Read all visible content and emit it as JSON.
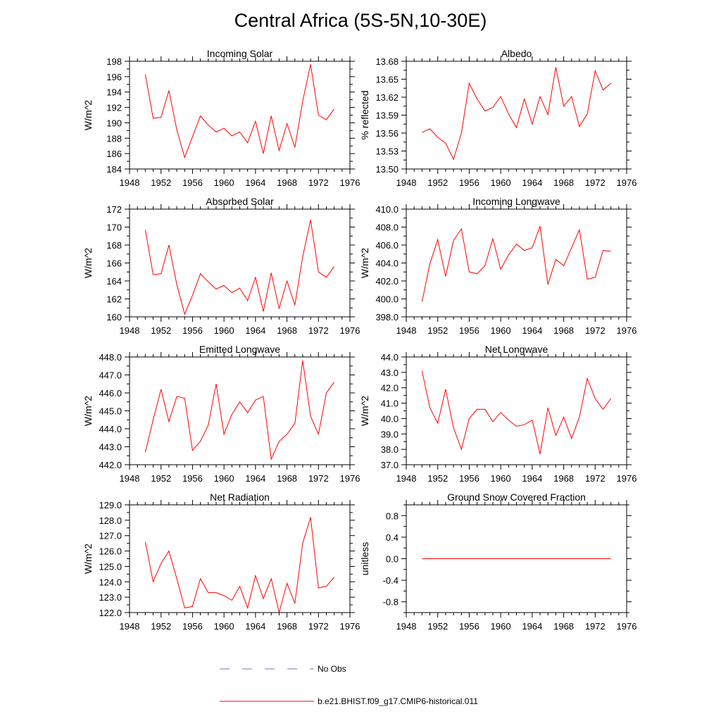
{
  "title": "Central Africa (5S-5N,10-30E)",
  "colors": {
    "model": "#ff0000",
    "obs": "#7a7ab0",
    "axis": "#000000"
  },
  "legend": {
    "entries": [
      {
        "label": "No Obs",
        "style": "dashed",
        "color": "#7a7ab0"
      },
      {
        "label": "b.e21.BHIST.f09_g17.CMIP6-historical.011",
        "style": "solid",
        "color": "#ff0000"
      }
    ]
  },
  "chart_data": [
    {
      "type": "line",
      "title": "Incoming Solar",
      "ylabel": "W/m^2",
      "xlim": [
        1948,
        1976
      ],
      "ylim": [
        184,
        198
      ],
      "xticks": [
        1948,
        1952,
        1956,
        1960,
        1964,
        1968,
        1972,
        1976
      ],
      "yticks": [
        184,
        186,
        188,
        190,
        192,
        194,
        196,
        198
      ],
      "ytick_labels": [
        "184",
        "186",
        "188",
        "190",
        "192",
        "194",
        "196",
        "198"
      ],
      "x": [
        1950,
        1951,
        1952,
        1953,
        1954,
        1955,
        1956,
        1957,
        1958,
        1959,
        1960,
        1961,
        1962,
        1963,
        1964,
        1965,
        1966,
        1967,
        1968,
        1969,
        1970,
        1971,
        1972,
        1973,
        1974
      ],
      "series": [
        {
          "values": [
            196.3,
            190.6,
            190.7,
            194.2,
            189.1,
            185.5,
            188.2,
            190.9,
            189.7,
            188.8,
            189.3,
            188.3,
            188.8,
            187.4,
            190.2,
            186.0,
            190.9,
            186.4,
            189.9,
            186.8,
            192.8,
            197.6,
            191.0,
            190.4,
            191.8
          ]
        }
      ]
    },
    {
      "type": "line",
      "title": "Albedo",
      "ylabel": "% reflected",
      "xlim": [
        1948,
        1976
      ],
      "ylim": [
        13.5,
        13.68
      ],
      "xticks": [
        1948,
        1952,
        1956,
        1960,
        1964,
        1968,
        1972,
        1976
      ],
      "yticks": [
        13.5,
        13.53,
        13.56,
        13.59,
        13.62,
        13.65,
        13.68
      ],
      "ytick_labels": [
        "13.50",
        "13.53",
        "13.56",
        "13.59",
        "13.62",
        "13.65",
        "13.68"
      ],
      "x": [
        1950,
        1951,
        1952,
        1953,
        1954,
        1955,
        1956,
        1957,
        1958,
        1959,
        1960,
        1961,
        1962,
        1963,
        1964,
        1965,
        1966,
        1967,
        1968,
        1969,
        1970,
        1971,
        1972,
        1973,
        1974
      ],
      "series": [
        {
          "values": [
            13.561,
            13.567,
            13.553,
            13.543,
            13.516,
            13.56,
            13.643,
            13.617,
            13.597,
            13.603,
            13.621,
            13.592,
            13.569,
            13.617,
            13.575,
            13.621,
            13.591,
            13.67,
            13.605,
            13.621,
            13.571,
            13.592,
            13.664,
            13.632,
            13.643
          ]
        }
      ]
    },
    {
      "type": "line",
      "title": "Absorbed Solar",
      "ylabel": "W/m^2",
      "xlim": [
        1948,
        1976
      ],
      "ylim": [
        160,
        172
      ],
      "xticks": [
        1948,
        1952,
        1956,
        1960,
        1964,
        1968,
        1972,
        1976
      ],
      "yticks": [
        160,
        162,
        164,
        166,
        168,
        170,
        172
      ],
      "ytick_labels": [
        "160",
        "162",
        "164",
        "166",
        "168",
        "170",
        "172"
      ],
      "x": [
        1950,
        1951,
        1952,
        1953,
        1954,
        1955,
        1956,
        1957,
        1958,
        1959,
        1960,
        1961,
        1962,
        1963,
        1964,
        1965,
        1966,
        1967,
        1968,
        1969,
        1970,
        1971,
        1972,
        1973,
        1974
      ],
      "series": [
        {
          "values": [
            169.7,
            164.7,
            164.8,
            168.0,
            163.6,
            160.3,
            162.4,
            164.8,
            163.9,
            163.1,
            163.5,
            162.7,
            163.2,
            161.8,
            164.4,
            160.6,
            164.9,
            160.9,
            164.0,
            161.3,
            166.7,
            170.8,
            165.0,
            164.4,
            165.6
          ]
        }
      ]
    },
    {
      "type": "line",
      "title": "Incoming Longwave",
      "ylabel": "W/m^2",
      "xlim": [
        1948,
        1976
      ],
      "ylim": [
        398,
        410
      ],
      "xticks": [
        1948,
        1952,
        1956,
        1960,
        1964,
        1968,
        1972,
        1976
      ],
      "yticks": [
        398,
        400,
        402,
        404,
        406,
        408,
        410
      ],
      "ytick_labels": [
        "398.0",
        "400.0",
        "402.0",
        "404.0",
        "406.0",
        "408.0",
        "410.0"
      ],
      "x": [
        1950,
        1951,
        1952,
        1953,
        1954,
        1955,
        1956,
        1957,
        1958,
        1959,
        1960,
        1961,
        1962,
        1963,
        1964,
        1965,
        1966,
        1967,
        1968,
        1969,
        1970,
        1971,
        1972,
        1973,
        1974
      ],
      "series": [
        {
          "values": [
            399.7,
            403.9,
            406.6,
            402.5,
            406.5,
            407.8,
            403.0,
            402.8,
            403.7,
            406.7,
            403.3,
            404.9,
            406.1,
            405.4,
            405.7,
            408.1,
            401.6,
            404.4,
            403.7,
            405.7,
            407.7,
            402.2,
            402.4,
            405.4,
            405.3
          ]
        }
      ]
    },
    {
      "type": "line",
      "title": "Emitted Longwave",
      "ylabel": "W/m^2",
      "xlim": [
        1948,
        1976
      ],
      "ylim": [
        442,
        448
      ],
      "xticks": [
        1948,
        1952,
        1956,
        1960,
        1964,
        1968,
        1972,
        1976
      ],
      "yticks": [
        442,
        443,
        444,
        445,
        446,
        447,
        448
      ],
      "ytick_labels": [
        "442.0",
        "443.0",
        "444.0",
        "445.0",
        "446.0",
        "447.0",
        "448.0"
      ],
      "x": [
        1950,
        1951,
        1952,
        1953,
        1954,
        1955,
        1956,
        1957,
        1958,
        1959,
        1960,
        1961,
        1962,
        1963,
        1964,
        1965,
        1966,
        1967,
        1968,
        1969,
        1970,
        1971,
        1972,
        1973,
        1974
      ],
      "series": [
        {
          "values": [
            442.7,
            444.5,
            446.2,
            444.4,
            445.8,
            445.7,
            442.8,
            443.3,
            444.2,
            446.5,
            443.7,
            444.8,
            445.5,
            444.9,
            445.6,
            445.8,
            442.3,
            443.3,
            443.7,
            444.3,
            447.8,
            444.7,
            443.7,
            446.0,
            446.6
          ]
        }
      ]
    },
    {
      "type": "line",
      "title": "Net Longwave",
      "ylabel": "W/m^2",
      "xlim": [
        1948,
        1976
      ],
      "ylim": [
        37,
        44
      ],
      "xticks": [
        1948,
        1952,
        1956,
        1960,
        1964,
        1968,
        1972,
        1976
      ],
      "yticks": [
        37,
        38,
        39,
        40,
        41,
        42,
        43,
        44
      ],
      "ytick_labels": [
        "37.0",
        "38.0",
        "39.0",
        "40.0",
        "41.0",
        "42.0",
        "43.0",
        "44.0"
      ],
      "x": [
        1950,
        1951,
        1952,
        1953,
        1954,
        1955,
        1956,
        1957,
        1958,
        1959,
        1960,
        1961,
        1962,
        1963,
        1964,
        1965,
        1966,
        1967,
        1968,
        1969,
        1970,
        1971,
        1972,
        1973,
        1974
      ],
      "series": [
        {
          "values": [
            43.1,
            40.7,
            39.7,
            41.9,
            39.4,
            38.0,
            40.0,
            40.6,
            40.6,
            39.8,
            40.4,
            39.9,
            39.5,
            39.6,
            39.9,
            37.7,
            40.7,
            38.9,
            40.1,
            38.7,
            40.1,
            42.6,
            41.3,
            40.6,
            41.3
          ]
        }
      ]
    },
    {
      "type": "line",
      "title": "Net Radiation",
      "ylabel": "W/m^2",
      "xlim": [
        1948,
        1976
      ],
      "ylim": [
        122,
        129
      ],
      "xticks": [
        1948,
        1952,
        1956,
        1960,
        1964,
        1968,
        1972,
        1976
      ],
      "yticks": [
        122,
        123,
        124,
        125,
        126,
        127,
        128,
        129
      ],
      "ytick_labels": [
        "122.0",
        "123.0",
        "124.0",
        "125.0",
        "126.0",
        "127.0",
        "128.0",
        "129.0"
      ],
      "x": [
        1950,
        1951,
        1952,
        1953,
        1954,
        1955,
        1956,
        1957,
        1958,
        1959,
        1960,
        1961,
        1962,
        1963,
        1964,
        1965,
        1966,
        1967,
        1968,
        1969,
        1970,
        1971,
        1972,
        1973,
        1974
      ],
      "series": [
        {
          "values": [
            126.6,
            124.0,
            125.2,
            126.0,
            124.2,
            122.3,
            122.4,
            124.2,
            123.3,
            123.3,
            123.1,
            122.8,
            123.7,
            122.3,
            124.4,
            122.9,
            124.2,
            122.0,
            123.9,
            122.6,
            126.5,
            128.2,
            123.6,
            123.7,
            124.3
          ]
        }
      ]
    },
    {
      "type": "line",
      "title": "Ground Snow Covered Fraction",
      "ylabel": "unitless",
      "xlim": [
        1948,
        1976
      ],
      "ylim": [
        -1.0,
        1.0
      ],
      "xticks": [
        1948,
        1952,
        1956,
        1960,
        1964,
        1968,
        1972,
        1976
      ],
      "yticks": [
        -0.8,
        -0.4,
        0.0,
        0.4,
        0.8
      ],
      "ytick_labels": [
        "-0.8",
        "-0.4",
        "0.0",
        "0.4",
        "0.8"
      ],
      "x": [
        1950,
        1951,
        1952,
        1953,
        1954,
        1955,
        1956,
        1957,
        1958,
        1959,
        1960,
        1961,
        1962,
        1963,
        1964,
        1965,
        1966,
        1967,
        1968,
        1969,
        1970,
        1971,
        1972,
        1973,
        1974
      ],
      "series": [
        {
          "values": [
            0,
            0,
            0,
            0,
            0,
            0,
            0,
            0,
            0,
            0,
            0,
            0,
            0,
            0,
            0,
            0,
            0,
            0,
            0,
            0,
            0,
            0,
            0,
            0,
            0
          ]
        }
      ]
    }
  ]
}
